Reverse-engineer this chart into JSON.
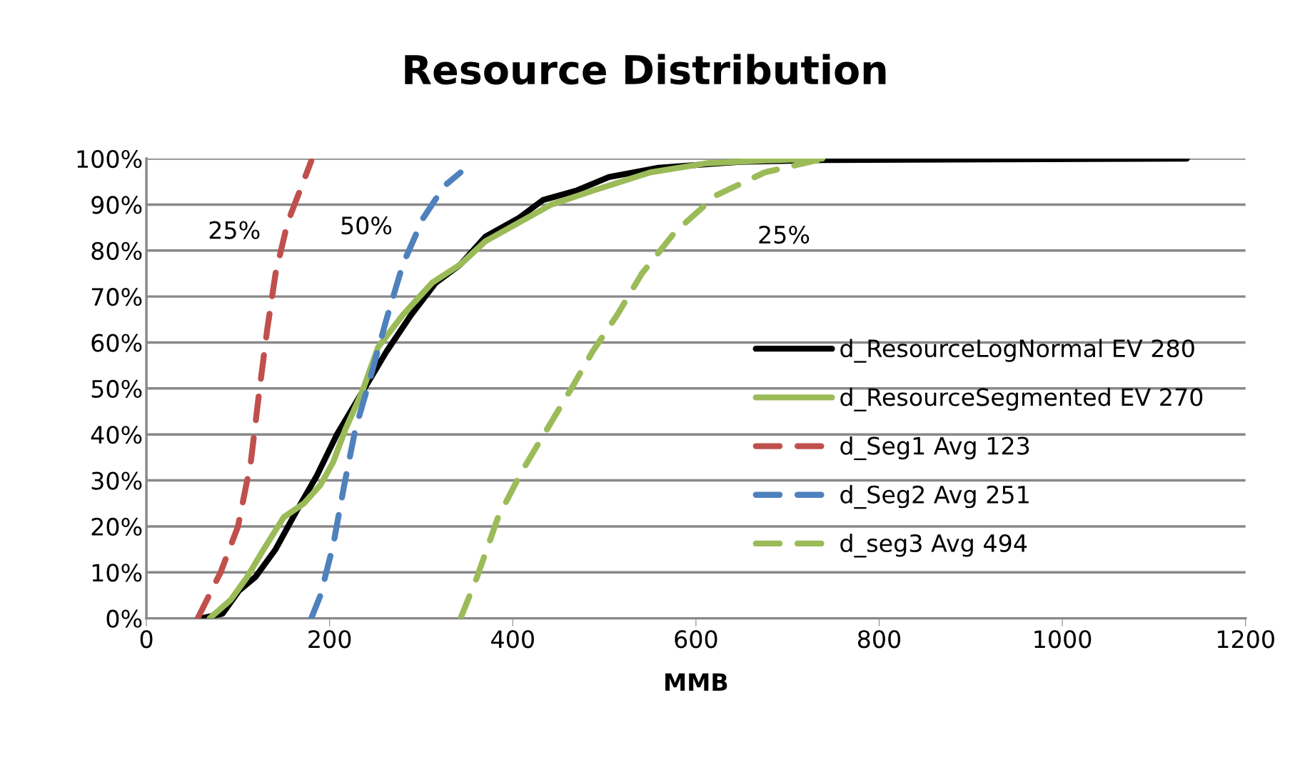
{
  "chart_data": {
    "type": "line",
    "title": "Resource Distribution",
    "xlabel": "MMB",
    "xlim": [
      0,
      1200
    ],
    "xticks": [
      0,
      200,
      400,
      600,
      800,
      1000,
      1200
    ],
    "ylim": [
      0,
      100
    ],
    "yticks": [
      {
        "value": 0,
        "label": "0%"
      },
      {
        "value": 10,
        "label": "10%"
      },
      {
        "value": 20,
        "label": "20%"
      },
      {
        "value": 30,
        "label": "30%"
      },
      {
        "value": 40,
        "label": "40%"
      },
      {
        "value": 50,
        "label": "50%"
      },
      {
        "value": 60,
        "label": "60%"
      },
      {
        "value": 70,
        "label": "70%"
      },
      {
        "value": 80,
        "label": "80%"
      },
      {
        "value": 90,
        "label": "90%"
      },
      {
        "value": 100,
        "label": "100%"
      }
    ],
    "grid": "y",
    "legend": "right",
    "marker": "none",
    "series": [
      {
        "name": "d_ResourceLogNormal EV 280",
        "color": "#000000",
        "line_style": "solid",
        "x": [
          60,
          83,
          101,
          119,
          141,
          163,
          186,
          208,
          235,
          262,
          289,
          316,
          343,
          370,
          406,
          433,
          469,
          505,
          559,
          648,
          738,
          1136
        ],
        "values": [
          0,
          1,
          6,
          9,
          15,
          23,
          31,
          40,
          49,
          58,
          66,
          73,
          77,
          83,
          87,
          91,
          93,
          96,
          98,
          99.3,
          99.7,
          100
        ]
      },
      {
        "name": "d_ResourceSegmented EV 270",
        "color": "#9bbb59",
        "line_style": "solid",
        "x": [
          69,
          92,
          110,
          128,
          150,
          172,
          190,
          204,
          217,
          235,
          253,
          280,
          312,
          343,
          370,
          406,
          442,
          487,
          550,
          612,
          675,
          738
        ],
        "values": [
          0,
          4,
          9,
          15,
          22,
          25,
          29,
          34,
          41,
          49,
          59,
          66,
          73,
          77,
          82,
          86,
          90,
          93,
          97,
          99,
          99.6,
          100
        ]
      },
      {
        "name": "d_Seg1 Avg 123",
        "color": "#c0504d",
        "line_style": "dashed",
        "x": [
          56,
          81,
          100,
          114,
          123,
          132,
          141,
          154,
          180
        ],
        "values": [
          0,
          10,
          20,
          34,
          49,
          63,
          75,
          86,
          99.5
        ]
      },
      {
        "name": "d_Seg2 Avg 251",
        "color": "#4f81bd",
        "line_style": "dashed",
        "x": [
          180,
          190,
          204,
          216,
          228,
          244,
          262,
          280,
          302,
          325,
          343
        ],
        "values": [
          0,
          5,
          16,
          29,
          41,
          52,
          65,
          77,
          87,
          94,
          97
        ]
      },
      {
        "name": "d_seg3 Avg 494",
        "color": "#9bbb59",
        "line_style": "dashed",
        "x": [
          343,
          361,
          384,
          410,
          437,
          464,
          487,
          514,
          541,
          577,
          622,
          675,
          740
        ],
        "values": [
          0,
          9,
          22,
          32,
          41,
          50,
          58,
          66,
          75,
          84,
          92,
          97,
          100
        ]
      }
    ],
    "annotations": [
      "25%",
      "50%",
      "25%"
    ]
  }
}
